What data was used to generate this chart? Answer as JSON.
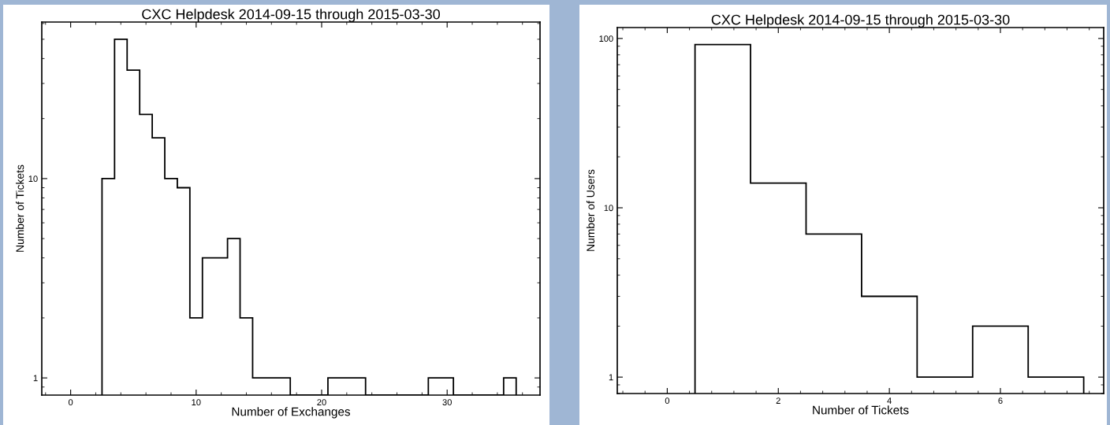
{
  "chart_data": [
    {
      "type": "histogram",
      "title": "CXC Helpdesk 2014-09-15 through 2015-03-30",
      "xlabel": "Number of Exchanges",
      "ylabel": "Number of Tickets",
      "log": "y",
      "color": "#000000",
      "bins": [
        2.5,
        3.5,
        4.5,
        5.5,
        6.5,
        7.5,
        8.5,
        9.5,
        10.5,
        11.5,
        12.5,
        13.5,
        14.5,
        15.5,
        16.5,
        17.5,
        18.5,
        19.5,
        20.5,
        21.5,
        22.5,
        23.5,
        24.5,
        25.5,
        26.5,
        27.5,
        28.5,
        29.5,
        30.5,
        31.5,
        32.5,
        33.5,
        34.5,
        35.5
      ],
      "values": [
        10,
        50,
        35,
        21,
        16,
        10,
        9,
        2,
        4,
        4,
        5,
        2,
        1,
        1,
        1,
        null,
        null,
        null,
        1,
        1,
        1,
        null,
        null,
        null,
        null,
        null,
        1,
        1,
        null,
        null,
        null,
        null,
        1
      ],
      "xlim": [
        -2.3,
        37.4
      ],
      "ylim": [
        0.82,
        61
      ],
      "xticks": [
        0,
        10,
        20,
        30
      ],
      "yticks": [
        1,
        10
      ]
    },
    {
      "type": "histogram",
      "title": "CXC Helpdesk 2014-09-15 through 2015-03-30",
      "xlabel": "Number of Tickets",
      "ylabel": "Number of Users",
      "log": "y",
      "color": "#000000",
      "bins": [
        0.5,
        1.5,
        2.5,
        3.5,
        4.5,
        5.5,
        6.5,
        7.5
      ],
      "values": [
        92,
        14,
        7,
        3,
        1,
        2,
        1
      ],
      "xlim": [
        -0.9,
        7.86
      ],
      "ylim": [
        0.8,
        116
      ],
      "xticks": [
        0,
        2,
        4,
        6
      ],
      "yticks": [
        1,
        10,
        100
      ]
    }
  ]
}
